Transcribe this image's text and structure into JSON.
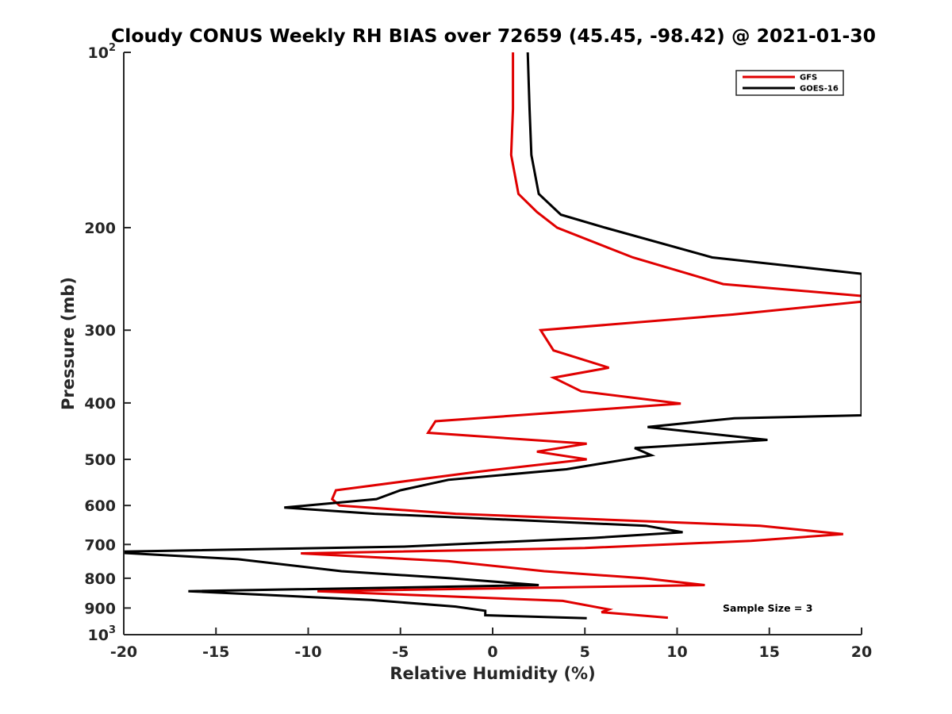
{
  "chart_data": {
    "type": "line",
    "title": "Cloudy CONUS Weekly RH BIAS over 72659 (45.45, -98.42) @ 2021-01-30",
    "xlabel": "Relative Humidity (%)",
    "ylabel": "Pressure (mb)",
    "xlim": [
      -20,
      20
    ],
    "ylim": [
      1000,
      100
    ],
    "y_scale": "log",
    "x_ticks": [
      -20,
      -15,
      -10,
      -5,
      0,
      5,
      10,
      15,
      20
    ],
    "y_ticks": [
      {
        "value": 100,
        "base": "10",
        "exp": "2"
      },
      {
        "value": 200,
        "label": "200"
      },
      {
        "value": 300,
        "label": "300"
      },
      {
        "value": 400,
        "label": "400"
      },
      {
        "value": 500,
        "label": "500"
      },
      {
        "value": 600,
        "label": "600"
      },
      {
        "value": 700,
        "label": "700"
      },
      {
        "value": 800,
        "label": "800"
      },
      {
        "value": 900,
        "label": "900"
      },
      {
        "value": 1000,
        "base": "10",
        "exp": "3"
      }
    ],
    "grid": false,
    "legend_position": "top-right",
    "annotation": "Sample Size = 3",
    "series": [
      {
        "name": "GFS",
        "color": "#e00000",
        "points": [
          [
            1.1,
            100
          ],
          [
            1.1,
            125
          ],
          [
            1.0,
            150
          ],
          [
            1.4,
            175
          ],
          [
            2.4,
            188
          ],
          [
            3.5,
            200
          ],
          [
            7.6,
            225
          ],
          [
            12.5,
            250
          ],
          [
            20,
            262
          ],
          [
            20,
            268
          ],
          [
            13,
            282
          ],
          [
            2.6,
            300
          ],
          [
            3.3,
            325
          ],
          [
            6.3,
            348
          ],
          [
            3.3,
            362
          ],
          [
            4.8,
            382
          ],
          [
            10.2,
            401
          ],
          [
            -3.1,
            430
          ],
          [
            -3.5,
            450
          ],
          [
            5.1,
            470
          ],
          [
            2.4,
            485
          ],
          [
            5.1,
            500
          ],
          [
            -0.8,
            525
          ],
          [
            -8.5,
            565
          ],
          [
            -8.7,
            585
          ],
          [
            -8.3,
            600
          ],
          [
            -2.0,
            620
          ],
          [
            14.5,
            650
          ],
          [
            19.0,
            672
          ],
          [
            14,
            690
          ],
          [
            5.0,
            710
          ],
          [
            -10.4,
            725
          ],
          [
            -2.4,
            748
          ],
          [
            2.8,
            778
          ],
          [
            8.2,
            800
          ],
          [
            11.5,
            822
          ],
          [
            -9.5,
            842
          ],
          [
            3.8,
            875
          ],
          [
            6.3,
            905
          ],
          [
            5.9,
            915
          ],
          [
            9.5,
            935
          ]
        ]
      },
      {
        "name": "GOES-16",
        "color": "#000000",
        "points": [
          [
            1.9,
            100
          ],
          [
            2.0,
            125
          ],
          [
            2.1,
            150
          ],
          [
            2.5,
            175
          ],
          [
            3.7,
            190
          ],
          [
            6.1,
            200
          ],
          [
            11.9,
            225
          ],
          [
            20,
            240
          ],
          [
            20,
            420
          ],
          [
            13.1,
            425
          ],
          [
            8.4,
            440
          ],
          [
            14.9,
            463
          ],
          [
            7.7,
            478
          ],
          [
            8.6,
            492
          ],
          [
            4.0,
            520
          ],
          [
            -2.4,
            542
          ],
          [
            -5.0,
            565
          ],
          [
            -6.3,
            585
          ],
          [
            -11.3,
            605
          ],
          [
            -6.4,
            620
          ],
          [
            8.3,
            650
          ],
          [
            10.3,
            667
          ],
          [
            5.5,
            682
          ],
          [
            -4.8,
            706
          ],
          [
            -20,
            720
          ],
          [
            -20,
            724
          ],
          [
            -13.8,
            742
          ],
          [
            -8.2,
            778
          ],
          [
            -2.3,
            800
          ],
          [
            2.5,
            822
          ],
          [
            -16.5,
            842
          ],
          [
            -6.6,
            872
          ],
          [
            -2.0,
            895
          ],
          [
            -0.4,
            910
          ],
          [
            -0.4,
            926
          ],
          [
            5.1,
            937
          ]
        ]
      }
    ]
  }
}
